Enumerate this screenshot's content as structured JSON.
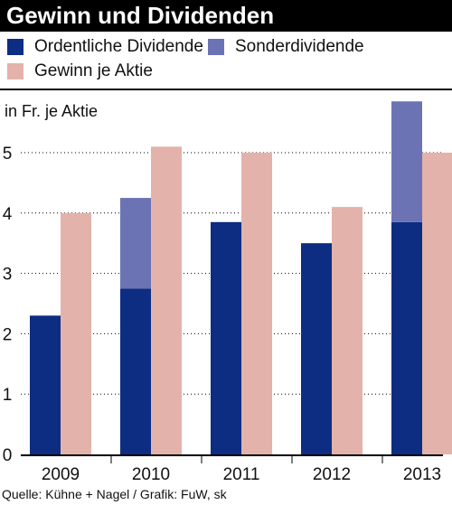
{
  "header": {
    "title": "Gewinn und Dividenden"
  },
  "legend": {
    "items": [
      {
        "label": "Ordentliche Dividende",
        "color": "#0d2d82"
      },
      {
        "label": "Sonderdividende",
        "color": "#6c73b4"
      },
      {
        "label": "Gewinn je Aktie",
        "color": "#e3b2aa"
      }
    ]
  },
  "footer": {
    "source": "Quelle: Kühne + Nagel / Grafik: FuW, sk"
  },
  "chart_data": {
    "type": "bar",
    "ylabel": "in Fr. je Aktie",
    "categories": [
      "2009",
      "2010",
      "2011",
      "2012",
      "2013"
    ],
    "ylim": [
      0,
      6
    ],
    "yticks": [
      0,
      1,
      2,
      3,
      4,
      5
    ],
    "grid": "horizontal-dotted",
    "series": [
      {
        "name": "Ordentliche Dividende",
        "values": [
          2.3,
          2.75,
          3.85,
          3.5,
          3.85
        ],
        "color": "#0d2d82",
        "stack": "dividende"
      },
      {
        "name": "Sonderdividende",
        "values": [
          0,
          1.5,
          0,
          0,
          2.0
        ],
        "color": "#6c73b4",
        "stack": "dividende"
      },
      {
        "name": "Gewinn je Aktie",
        "values": [
          4.0,
          5.1,
          5.0,
          4.1,
          5.0
        ],
        "color": "#e3b2aa",
        "stack": "gewinn"
      }
    ]
  }
}
